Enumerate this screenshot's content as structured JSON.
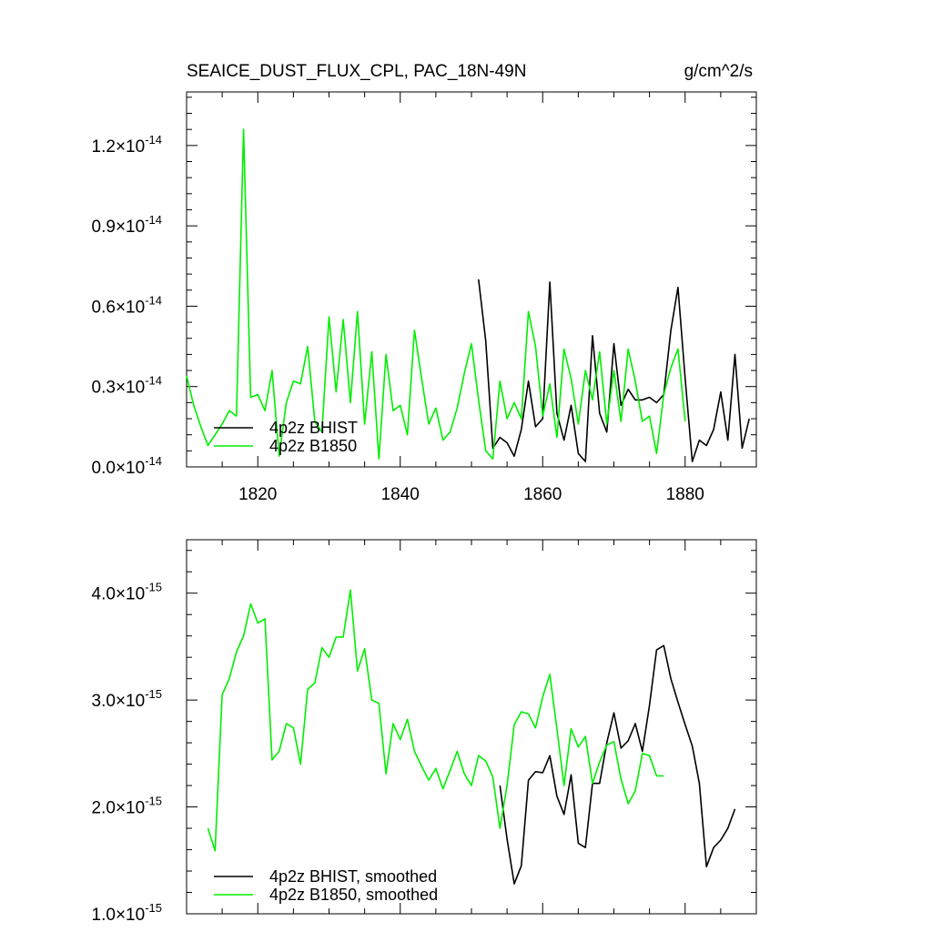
{
  "header": {
    "title": "SEAICE_DUST_FLUX_CPL, PAC_18N-49N",
    "units": "g/cm^2/s"
  },
  "colors": {
    "bhist": "#000000",
    "b1850": "#00ee00"
  },
  "chart_data": [
    {
      "type": "line",
      "title": "SEAICE_DUST_FLUX_CPL, PAC_18N-49N",
      "ylabel": "g/cm^2/s",
      "xlim": [
        1810,
        1890
      ],
      "ylim": [
        0,
        1.4e-14
      ],
      "xticks": [
        1820,
        1840,
        1860,
        1880
      ],
      "xtick_labels": [
        "1820",
        "1840",
        "1860",
        "1880"
      ],
      "yticks": [
        0,
        3e-15,
        6e-15,
        9e-15,
        1.2e-14
      ],
      "ytick_mantissa": [
        "0.0",
        "0.3",
        "0.6",
        "0.9",
        "1.2"
      ],
      "ytick_exponent": "-14",
      "legend_position": "bottom-left",
      "series": [
        {
          "name": "4p2z BHIST",
          "color": "#000000",
          "x": [
            1851,
            1852,
            1853,
            1854,
            1855,
            1856,
            1857,
            1858,
            1859,
            1860,
            1861,
            1862,
            1863,
            1864,
            1865,
            1866,
            1867,
            1868,
            1869,
            1870,
            1871,
            1872,
            1873,
            1874,
            1875,
            1876,
            1877,
            1878,
            1879,
            1880,
            1881,
            1882,
            1883,
            1884,
            1885,
            1886,
            1887,
            1888,
            1889
          ],
          "y": [
            7e-15,
            4.7e-15,
            7e-16,
            1.1e-15,
            9e-16,
            4e-16,
            1.4e-15,
            3.2e-15,
            1.5e-15,
            1.8e-15,
            6.9e-15,
            2e-15,
            1e-15,
            2.3e-15,
            5e-16,
            2e-16,
            4.9e-15,
            2e-15,
            1.3e-15,
            4.6e-15,
            2.3e-15,
            2.9e-15,
            2.5e-15,
            2.5e-15,
            2.6e-15,
            2.4e-15,
            2.7e-15,
            5.1e-15,
            6.7e-15,
            3.3e-15,
            2e-16,
            1e-15,
            8e-16,
            1.4e-15,
            2.8e-15,
            1e-15,
            4.2e-15,
            7e-16,
            1.8e-15
          ]
        },
        {
          "name": "4p2z B1850",
          "color": "#00ee00",
          "x": [
            1810,
            1811,
            1812,
            1813,
            1814,
            1815,
            1816,
            1817,
            1818,
            1819,
            1820,
            1821,
            1822,
            1823,
            1824,
            1825,
            1826,
            1827,
            1828,
            1829,
            1830,
            1831,
            1832,
            1833,
            1834,
            1835,
            1836,
            1837,
            1838,
            1839,
            1840,
            1841,
            1842,
            1843,
            1844,
            1845,
            1846,
            1847,
            1848,
            1849,
            1850,
            1851,
            1852,
            1853,
            1854,
            1855,
            1856,
            1857,
            1858,
            1859,
            1860,
            1861,
            1862,
            1863,
            1864,
            1865,
            1866,
            1867,
            1868,
            1869,
            1870,
            1871,
            1872,
            1873,
            1874,
            1875,
            1876,
            1877,
            1878,
            1879,
            1880
          ],
          "y": [
            3.4e-15,
            2.3e-15,
            1.5e-15,
            8e-16,
            1.2e-15,
            1.6e-15,
            2.1e-15,
            1.9e-15,
            1.26e-14,
            2.6e-15,
            2.7e-15,
            2.1e-15,
            3.6e-15,
            4e-16,
            2.4e-15,
            3.2e-15,
            3.1e-15,
            4.5e-15,
            1.7e-15,
            1.3e-15,
            5.6e-15,
            2.8e-15,
            5.5e-15,
            2.4e-15,
            5.8e-15,
            1.6e-15,
            4.3e-15,
            3e-16,
            4.2e-15,
            2.1e-15,
            2.3e-15,
            1.2e-15,
            5.1e-15,
            3.3e-15,
            1.6e-15,
            2.2e-15,
            1e-15,
            1.3e-15,
            2.2e-15,
            3.5e-15,
            4.6e-15,
            2.5e-15,
            6e-16,
            3e-16,
            3.2e-15,
            1.8e-15,
            2.4e-15,
            1.8e-15,
            5.8e-15,
            4.5e-15,
            1.9e-15,
            3.1e-15,
            1.1e-15,
            4.4e-15,
            3.3e-15,
            1.6e-15,
            3.6e-15,
            2.5e-15,
            4.3e-15,
            1.6e-15,
            3.6e-15,
            1.7e-15,
            4.4e-15,
            3.2e-15,
            1.7e-15,
            1.9e-15,
            5e-16,
            2.7e-15,
            3.7e-15,
            4.4e-15,
            1.7e-15
          ]
        }
      ]
    },
    {
      "type": "line",
      "xlim": [
        1810,
        1890
      ],
      "ylim": [
        1e-15,
        4.5e-15
      ],
      "xticks": [
        1820,
        1840,
        1860,
        1880
      ],
      "yticks": [
        1e-15,
        2e-15,
        3e-15,
        4e-15
      ],
      "ytick_mantissa": [
        "1.0",
        "2.0",
        "3.0",
        "4.0"
      ],
      "ytick_exponent": "-15",
      "legend_position": "bottom-left",
      "series": [
        {
          "name": "4p2z BHIST, smoothed",
          "color": "#000000",
          "x": [
            1854,
            1855,
            1856,
            1857,
            1858,
            1859,
            1860,
            1861,
            1862,
            1863,
            1864,
            1865,
            1866,
            1867,
            1868,
            1869,
            1870,
            1871,
            1872,
            1873,
            1874,
            1875,
            1876,
            1877,
            1878,
            1879,
            1880,
            1881,
            1882,
            1883,
            1884,
            1885,
            1886,
            1887
          ],
          "y": [
            2.2e-15,
            1.7e-15,
            1.28e-15,
            1.45e-15,
            2.25e-15,
            2.33e-15,
            2.32e-15,
            2.48e-15,
            2.1e-15,
            1.93e-15,
            2.3e-15,
            1.66e-15,
            1.62e-15,
            2.22e-15,
            2.22e-15,
            2.6e-15,
            2.88e-15,
            2.55e-15,
            2.62e-15,
            2.78e-15,
            2.52e-15,
            2.95e-15,
            3.47e-15,
            3.51e-15,
            3.2e-15,
            2.98e-15,
            2.77e-15,
            2.57e-15,
            2.22e-15,
            1.44e-15,
            1.62e-15,
            1.69e-15,
            1.8e-15,
            1.98e-15
          ]
        },
        {
          "name": "4p2z B1850, smoothed",
          "color": "#00ee00",
          "x": [
            1813,
            1814,
            1815,
            1816,
            1817,
            1818,
            1819,
            1820,
            1821,
            1822,
            1823,
            1824,
            1825,
            1826,
            1827,
            1828,
            1829,
            1830,
            1831,
            1832,
            1833,
            1834,
            1835,
            1836,
            1837,
            1838,
            1839,
            1840,
            1841,
            1842,
            1843,
            1844,
            1845,
            1846,
            1847,
            1848,
            1849,
            1850,
            1851,
            1852,
            1853,
            1854,
            1855,
            1856,
            1857,
            1858,
            1859,
            1860,
            1861,
            1862,
            1863,
            1864,
            1865,
            1866,
            1867,
            1868,
            1869,
            1870,
            1871,
            1872,
            1873,
            1874,
            1875,
            1876,
            1877
          ],
          "y": [
            1.8e-15,
            1.59e-15,
            3.05e-15,
            3.2e-15,
            3.45e-15,
            3.6e-15,
            3.9e-15,
            3.72e-15,
            3.76e-15,
            2.44e-15,
            2.52e-15,
            2.78e-15,
            2.74e-15,
            2.4e-15,
            3.1e-15,
            3.16e-15,
            3.49e-15,
            3.4e-15,
            3.59e-15,
            3.59e-15,
            4.03e-15,
            3.27e-15,
            3.48e-15,
            3e-15,
            2.97e-15,
            2.31e-15,
            2.78e-15,
            2.63e-15,
            2.82e-15,
            2.52e-15,
            2.38e-15,
            2.25e-15,
            2.36e-15,
            2.17e-15,
            2.34e-15,
            2.52e-15,
            2.31e-15,
            2.2e-15,
            2.48e-15,
            2.43e-15,
            2.28e-15,
            1.8e-15,
            2.2e-15,
            2.77e-15,
            2.89e-15,
            2.87e-15,
            2.74e-15,
            3.03e-15,
            3.24e-15,
            2.73e-15,
            2.2e-15,
            2.73e-15,
            2.56e-15,
            2.66e-15,
            2.22e-15,
            2.42e-15,
            2.58e-15,
            2.61e-15,
            2.26e-15,
            2.03e-15,
            2.15e-15,
            2.5e-15,
            2.48e-15,
            2.29e-15,
            2.29e-15
          ]
        }
      ]
    }
  ]
}
